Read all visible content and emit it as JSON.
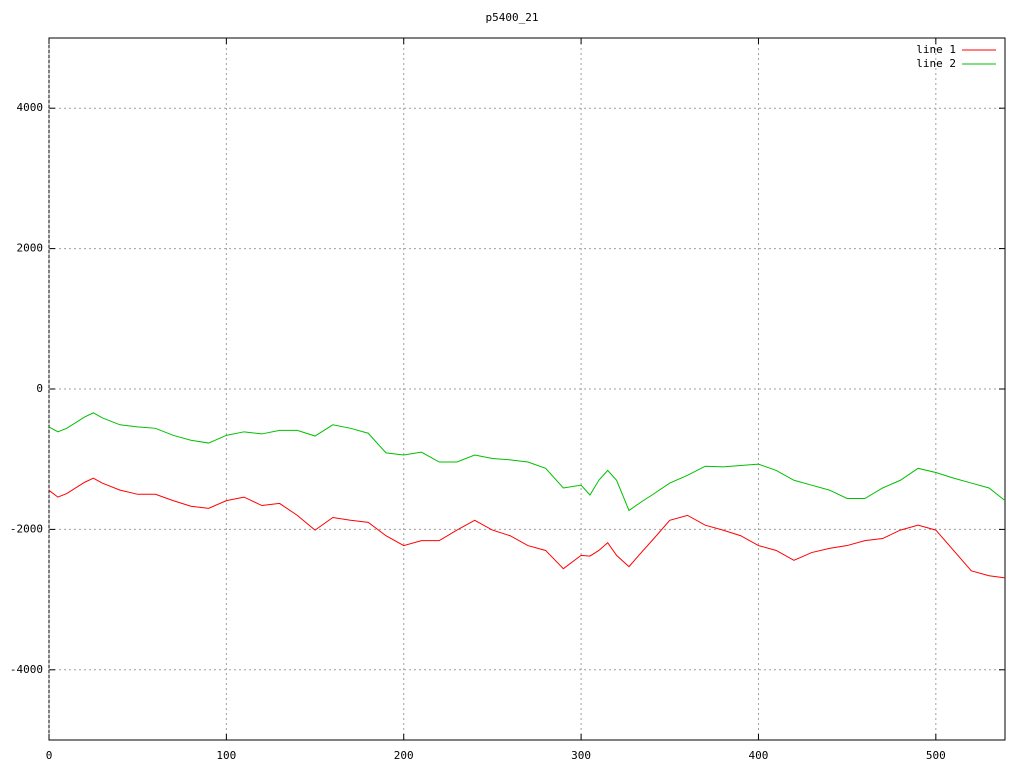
{
  "chart_data": {
    "type": "line",
    "title": "p5400_21",
    "x": [
      0,
      5,
      10,
      20,
      25,
      30,
      40,
      50,
      60,
      70,
      80,
      90,
      100,
      110,
      120,
      130,
      140,
      150,
      160,
      170,
      180,
      190,
      200,
      210,
      220,
      230,
      240,
      250,
      260,
      270,
      280,
      290,
      300,
      305,
      310,
      315,
      320,
      327,
      335,
      340,
      350,
      360,
      370,
      380,
      390,
      400,
      410,
      420,
      430,
      440,
      450,
      460,
      470,
      480,
      490,
      500,
      510,
      520,
      530,
      539
    ],
    "series": [
      {
        "name": "line 1",
        "color": "#ff0000",
        "values": [
          -1443,
          -1540,
          -1490,
          -1330,
          -1270,
          -1340,
          -1440,
          -1500,
          -1500,
          -1590,
          -1670,
          -1700,
          -1590,
          -1540,
          -1660,
          -1630,
          -1800,
          -2010,
          -1830,
          -1870,
          -1900,
          -2090,
          -2230,
          -2160,
          -2160,
          -2010,
          -1870,
          -2010,
          -2090,
          -2230,
          -2300,
          -2560,
          -2370,
          -2380,
          -2300,
          -2190,
          -2370,
          -2530,
          -2300,
          -2160,
          -1870,
          -1800,
          -1940,
          -2010,
          -2090,
          -2230,
          -2300,
          -2440,
          -2330,
          -2270,
          -2230,
          -2160,
          -2130,
          -2010,
          -1940,
          -2010,
          -2300,
          -2590,
          -2660,
          -2690
        ]
      },
      {
        "name": "line 2",
        "color": "#00c000",
        "values": [
          -540,
          -610,
          -560,
          -400,
          -340,
          -410,
          -510,
          -540,
          -560,
          -660,
          -730,
          -770,
          -660,
          -610,
          -640,
          -590,
          -590,
          -670,
          -510,
          -560,
          -630,
          -910,
          -940,
          -900,
          -1040,
          -1040,
          -940,
          -990,
          -1010,
          -1040,
          -1130,
          -1410,
          -1370,
          -1510,
          -1300,
          -1160,
          -1300,
          -1730,
          -1590,
          -1510,
          -1340,
          -1230,
          -1100,
          -1110,
          -1090,
          -1070,
          -1160,
          -1300,
          -1370,
          -1440,
          -1560,
          -1560,
          -1410,
          -1300,
          -1130,
          -1190,
          -1270,
          -1340,
          -1410,
          -1590
        ]
      }
    ],
    "xlim": [
      0,
      539
    ],
    "ylim": [
      -5000,
      5000
    ],
    "xticks": [
      0,
      100,
      200,
      300,
      400,
      500
    ],
    "yticks": [
      -4000,
      -2000,
      0,
      2000,
      4000
    ],
    "grid": true,
    "legend": "top-right"
  }
}
